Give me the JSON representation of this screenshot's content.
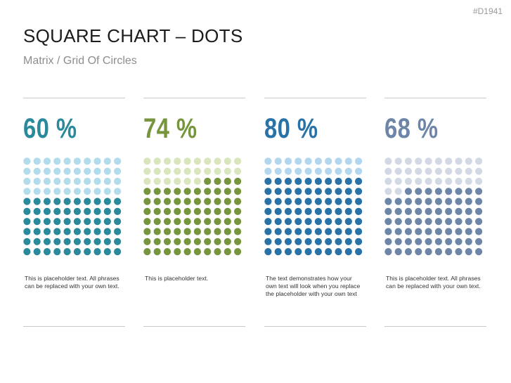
{
  "slide_id": "#D1941",
  "title": "SQUARE CHART – DOTS",
  "subtitle": "Matrix / Grid Of Circles",
  "chart_data": [
    {
      "type": "dot-matrix",
      "label": "60 %",
      "value": 60,
      "total": 100,
      "rows": 10,
      "cols": 10,
      "filled_color": "#2a8a9c",
      "empty_color": "#b2dceb",
      "text_color": "#2a8a9c",
      "description": "This is placeholder text. All phrases can be replaced with your own text."
    },
    {
      "type": "dot-matrix",
      "label": "74 %",
      "value": 74,
      "total": 100,
      "rows": 10,
      "cols": 10,
      "filled_color": "#76953d",
      "empty_color": "#d9e6bd",
      "text_color": "#76953d",
      "description": "This is placeholder text."
    },
    {
      "type": "dot-matrix",
      "label": "80 %",
      "value": 80,
      "total": 100,
      "rows": 10,
      "cols": 10,
      "filled_color": "#2872a8",
      "empty_color": "#b3d6ef",
      "text_color": "#2872a8",
      "description": "The text demonstrates how your own text will look when you replace the placeholder with your own text"
    },
    {
      "type": "dot-matrix",
      "label": "68 %",
      "value": 68,
      "total": 100,
      "rows": 10,
      "cols": 10,
      "filled_color": "#6d86a8",
      "empty_color": "#d2d9e5",
      "text_color": "#6d86a8",
      "description": "This is placeholder text. All phrases can be replaced with your own text."
    }
  ]
}
